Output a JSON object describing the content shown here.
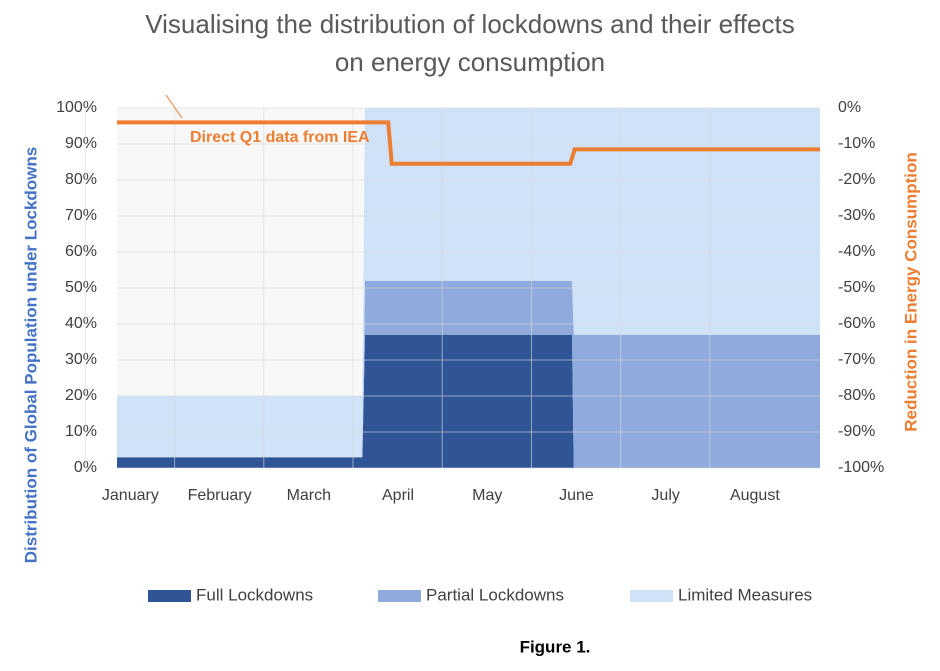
{
  "chart_data": {
    "type": "area",
    "title": [
      "Visualising the distribution of lockdowns and their effects",
      "on energy consumption"
    ],
    "y_label": "Distribution of Global Population under Lockdowns",
    "y2_label": "Reduction in Energy Consumption",
    "caption": "Figure 1.",
    "annotation": "Direct Q1 data from IEA",
    "xlim": [
      -0.15,
      7.73
    ],
    "xticks": [
      {
        "value": 0,
        "label": "January"
      },
      {
        "value": 1,
        "label": "February"
      },
      {
        "value": 2,
        "label": "March"
      },
      {
        "value": 3,
        "label": "April"
      },
      {
        "value": 4,
        "label": "May"
      },
      {
        "value": 5,
        "label": "June"
      },
      {
        "value": 6,
        "label": "July"
      },
      {
        "value": 7,
        "label": "August"
      }
    ],
    "ylim": [
      0,
      100
    ],
    "yticks": [
      {
        "value": 0,
        "label": "0%"
      },
      {
        "value": 10,
        "label": "10%"
      },
      {
        "value": 20,
        "label": "20%"
      },
      {
        "value": 30,
        "label": "30%"
      },
      {
        "value": 40,
        "label": "40%"
      },
      {
        "value": 50,
        "label": "50%"
      },
      {
        "value": 60,
        "label": "60%"
      },
      {
        "value": 70,
        "label": "70%"
      },
      {
        "value": 80,
        "label": "80%"
      },
      {
        "value": 90,
        "label": "90%"
      },
      {
        "value": 100,
        "label": "100%"
      }
    ],
    "y2lim": [
      -100,
      0
    ],
    "y2ticks": [
      {
        "value": 0,
        "label": "0%"
      },
      {
        "value": -10,
        "label": "-10%"
      },
      {
        "value": -20,
        "label": "-20%"
      },
      {
        "value": -30,
        "label": "-30%"
      },
      {
        "value": -40,
        "label": "-40%"
      },
      {
        "value": -50,
        "label": "-50%"
      },
      {
        "value": -60,
        "label": "-60%"
      },
      {
        "value": -70,
        "label": "-70%"
      },
      {
        "value": -80,
        "label": "-80%"
      },
      {
        "value": -90,
        "label": "-90%"
      },
      {
        "value": -100,
        "label": "-100%"
      }
    ],
    "grid": true,
    "stacked": true,
    "x": [
      -0.15,
      2.6,
      2.63,
      4.95,
      4.97,
      7.73
    ],
    "series": [
      {
        "name": "Full Lockdowns",
        "color": "#2f5597",
        "values": [
          3,
          3,
          37,
          37,
          0,
          0
        ]
      },
      {
        "name": "Partial Lockdowns",
        "color": "#8faadc",
        "values": [
          0,
          0,
          15,
          15,
          37,
          37
        ]
      },
      {
        "name": "Limited Measures",
        "color": "#cfe2f8",
        "values": [
          17,
          17,
          48,
          48,
          63,
          63
        ]
      }
    ],
    "line": {
      "type": "line",
      "axis": "y2",
      "color": "#ed7d31",
      "x": [
        -0.15,
        2.89,
        2.93,
        4.93,
        4.98,
        7.73
      ],
      "values": [
        -4,
        -4,
        -15.5,
        -15.5,
        -11.5,
        -11.5
      ]
    }
  }
}
